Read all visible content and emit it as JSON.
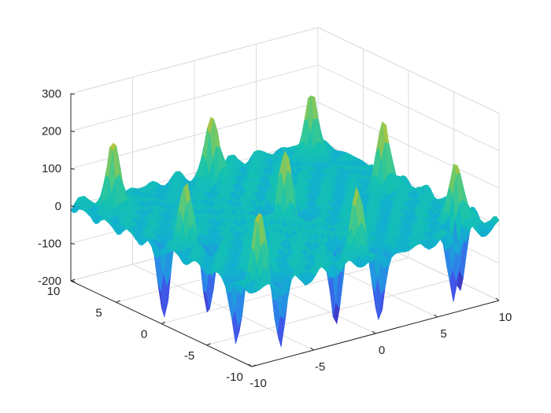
{
  "chart_data": {
    "type": "surface",
    "title": "",
    "xlabel": "",
    "ylabel": "",
    "zlabel": "",
    "xlim": [
      -10,
      10
    ],
    "ylim": [
      -10,
      10
    ],
    "zlim": [
      -200,
      300
    ],
    "x_ticks": [
      -10,
      -5,
      0,
      5,
      10
    ],
    "y_ticks": [
      -10,
      -5,
      0,
      5,
      10
    ],
    "z_ticks": [
      -200,
      -100,
      0,
      100,
      200,
      300
    ],
    "x_tick_labels": [
      "-10",
      "-5",
      "0",
      "5",
      "10"
    ],
    "y_tick_labels": [
      "-10",
      "-5",
      "0",
      "5",
      "10"
    ],
    "z_tick_labels": [
      "-200",
      "-100",
      "0",
      "100",
      "200",
      "300"
    ],
    "grid": true,
    "colormap": "parula",
    "colormap_stops": [
      "#3e26a8",
      "#4253e8",
      "#2c88e8",
      "#12b0cf",
      "#14c2b2",
      "#43c98a",
      "#a3c645",
      "#e9bb33",
      "#f9e21d"
    ],
    "grid_resolution": 67,
    "peaks": [
      {
        "x": -8,
        "y": -8,
        "z": 200
      },
      {
        "x": -8,
        "y": 0,
        "z": 200
      },
      {
        "x": -8,
        "y": 8,
        "z": 200
      },
      {
        "x": 0,
        "y": -8,
        "z": 200
      },
      {
        "x": 0,
        "y": 0,
        "z": 200
      },
      {
        "x": 0,
        "y": 8,
        "z": 200
      },
      {
        "x": 8,
        "y": -8,
        "z": 200
      },
      {
        "x": 8,
        "y": 0,
        "z": 200
      },
      {
        "x": 8,
        "y": 8,
        "z": 200
      }
    ],
    "troughs": [
      {
        "x": -9,
        "y": -7,
        "z": -200
      },
      {
        "x": -7,
        "y": -9,
        "z": -200
      },
      {
        "x": -9,
        "y": 1,
        "z": -200
      },
      {
        "x": -7,
        "y": -1,
        "z": -200
      },
      {
        "x": -1,
        "y": -7,
        "z": -200
      },
      {
        "x": 1,
        "y": -9,
        "z": -200
      },
      {
        "x": -1,
        "y": 1,
        "z": -200
      },
      {
        "x": 1,
        "y": -1,
        "z": -200
      },
      {
        "x": 7,
        "y": -9,
        "z": -200
      },
      {
        "x": 9,
        "y": -7,
        "z": -200
      }
    ]
  }
}
